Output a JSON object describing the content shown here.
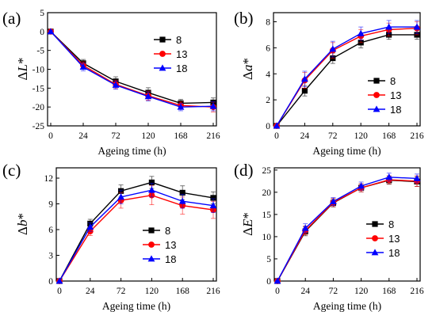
{
  "chart_data": [
    {
      "type": "line",
      "panel_label": "(a)",
      "xlabel": "Ageing time (h)",
      "ylabel_prefix": "Δ",
      "ylabel_var": "L",
      "ylabel_suffix": "*",
      "categories": [
        "0",
        "24",
        "72",
        "120",
        "168",
        "216"
      ],
      "ylim": [
        -25,
        5
      ],
      "yticks": [
        "5",
        "0",
        "-5",
        "-10",
        "-15",
        "-20",
        "-25"
      ],
      "legend_position": "center-right",
      "series": [
        {
          "name": "8",
          "color": "#000000",
          "marker": "square",
          "values": [
            0,
            -8.4,
            -13.2,
            -16.2,
            -19.0,
            -18.8
          ],
          "errors": [
            0.3,
            1.0,
            1.2,
            1.3,
            1.0,
            1.2
          ]
        },
        {
          "name": "13",
          "color": "#ff0000",
          "marker": "circle",
          "values": [
            0,
            -9.0,
            -14.0,
            -17.0,
            -19.6,
            -20.0
          ],
          "errors": [
            0.3,
            1.0,
            1.1,
            1.2,
            1.0,
            1.3
          ]
        },
        {
          "name": "18",
          "color": "#0000ff",
          "marker": "triangle",
          "values": [
            0,
            -9.4,
            -14.2,
            -17.2,
            -20.0,
            -19.8
          ],
          "errors": [
            0.3,
            1.0,
            1.1,
            1.2,
            1.0,
            1.2
          ]
        }
      ]
    },
    {
      "type": "line",
      "panel_label": "(b)",
      "xlabel": "Ageing time (h)",
      "ylabel_prefix": "Δ",
      "ylabel_var": "a",
      "ylabel_suffix": "*",
      "categories": [
        "0",
        "24",
        "72",
        "120",
        "168",
        "216"
      ],
      "ylim": [
        0,
        8.7
      ],
      "yticks": [
        "0",
        "2",
        "4",
        "6",
        "8"
      ],
      "legend_position": "bottom-right",
      "series": [
        {
          "name": "8",
          "color": "#000000",
          "marker": "square",
          "values": [
            0,
            2.7,
            5.2,
            6.4,
            7.0,
            7.0
          ],
          "errors": [
            0.05,
            0.4,
            0.4,
            0.4,
            0.35,
            0.35
          ]
        },
        {
          "name": "13",
          "color": "#ff0000",
          "marker": "circle",
          "values": [
            0,
            3.5,
            5.8,
            6.9,
            7.4,
            7.5
          ],
          "errors": [
            0.05,
            0.6,
            0.6,
            0.5,
            0.5,
            0.5
          ]
        },
        {
          "name": "18",
          "color": "#0000ff",
          "marker": "triangle",
          "values": [
            0,
            3.6,
            5.9,
            7.1,
            7.6,
            7.6
          ],
          "errors": [
            0.05,
            0.6,
            0.6,
            0.5,
            0.5,
            0.5
          ]
        }
      ]
    },
    {
      "type": "line",
      "panel_label": "(c)",
      "xlabel": "Ageing time (h)",
      "ylabel_prefix": "Δ",
      "ylabel_var": "b",
      "ylabel_suffix": "*",
      "categories": [
        "0",
        "24",
        "72",
        "120",
        "168",
        "216"
      ],
      "ylim": [
        0,
        13.2
      ],
      "yticks": [
        "0",
        "3",
        "6",
        "9",
        "12"
      ],
      "legend_position": "bottom-right",
      "series": [
        {
          "name": "8",
          "color": "#000000",
          "marker": "square",
          "values": [
            0,
            6.7,
            10.5,
            11.5,
            10.3,
            9.7
          ],
          "errors": [
            0.05,
            0.5,
            0.7,
            0.7,
            0.8,
            0.7
          ]
        },
        {
          "name": "13",
          "color": "#ff0000",
          "marker": "circle",
          "values": [
            0,
            5.8,
            9.4,
            10.0,
            8.8,
            8.3
          ],
          "errors": [
            0.05,
            0.5,
            0.9,
            1.1,
            1.0,
            1.0
          ]
        },
        {
          "name": "18",
          "color": "#0000ff",
          "marker": "triangle",
          "values": [
            0,
            6.3,
            9.8,
            10.6,
            9.3,
            8.8
          ],
          "errors": [
            0.05,
            0.5,
            0.8,
            0.8,
            0.8,
            0.8
          ]
        }
      ]
    },
    {
      "type": "line",
      "panel_label": "(d)",
      "xlabel": "Ageing time (h)",
      "ylabel_prefix": "Δ",
      "ylabel_var": "E",
      "ylabel_suffix": "*",
      "categories": [
        "0",
        "24",
        "72",
        "120",
        "168",
        "216"
      ],
      "ylim": [
        0,
        25.5
      ],
      "yticks": [
        "0",
        "5",
        "10",
        "15",
        "20",
        "25"
      ],
      "legend_position": "bottom-right",
      "series": [
        {
          "name": "8",
          "color": "#000000",
          "marker": "square",
          "values": [
            0,
            11.2,
            17.6,
            21.0,
            22.7,
            22.4
          ],
          "errors": [
            0.1,
            1.0,
            0.9,
            0.9,
            0.9,
            1.1
          ]
        },
        {
          "name": "13",
          "color": "#ff0000",
          "marker": "circle",
          "values": [
            0,
            11.4,
            17.7,
            21.0,
            22.8,
            22.5
          ],
          "errors": [
            0.1,
            1.0,
            0.9,
            0.9,
            0.9,
            1.2
          ]
        },
        {
          "name": "18",
          "color": "#0000ff",
          "marker": "triangle",
          "values": [
            0,
            11.9,
            17.9,
            21.4,
            23.4,
            23.1
          ],
          "errors": [
            0.1,
            1.0,
            0.9,
            0.9,
            0.9,
            1.0
          ]
        }
      ]
    }
  ]
}
